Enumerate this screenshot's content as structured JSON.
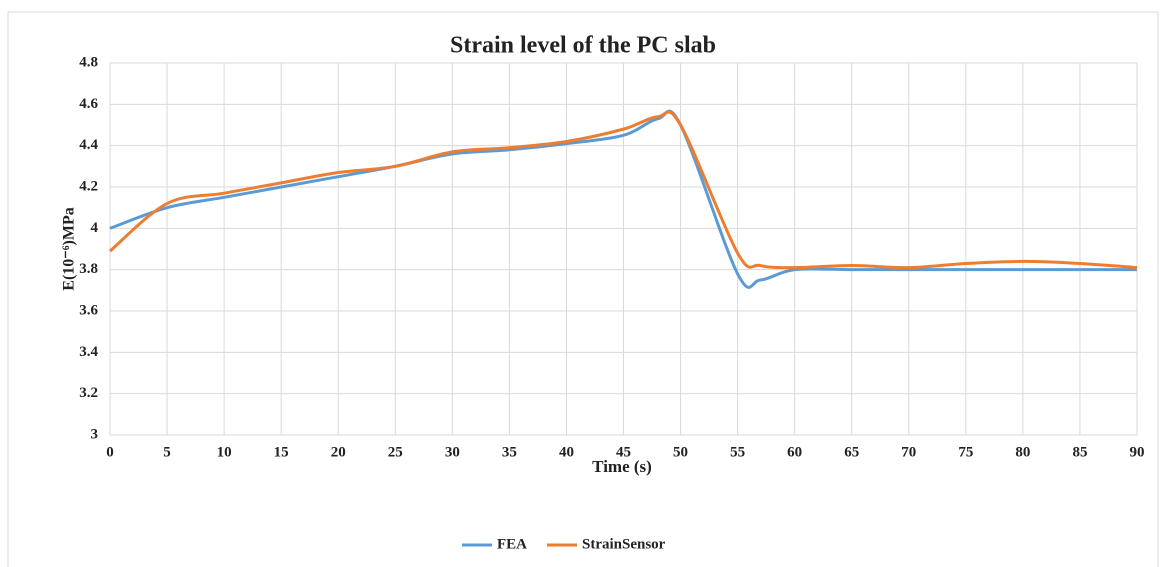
{
  "chart_data": {
    "type": "line",
    "title": "Strain level of the PC slab",
    "xlabel": "Time (s)",
    "ylabel": "E(10⁻⁶)MPa",
    "x": [
      0,
      5,
      10,
      15,
      20,
      25,
      30,
      35,
      40,
      45,
      48,
      50,
      55,
      57,
      60,
      65,
      70,
      75,
      80,
      85,
      90
    ],
    "series": [
      {
        "name": "FEA",
        "color": "#5b9bd5",
        "values": [
          4.0,
          4.1,
          4.15,
          4.2,
          4.25,
          4.3,
          4.36,
          4.38,
          4.41,
          4.45,
          4.53,
          4.5,
          3.78,
          3.75,
          3.8,
          3.8,
          3.8,
          3.8,
          3.8,
          3.8,
          3.8
        ]
      },
      {
        "name": "StrainSensor",
        "color": "#ed7d31",
        "values": [
          3.89,
          4.12,
          4.17,
          4.22,
          4.27,
          4.3,
          4.37,
          4.39,
          4.42,
          4.48,
          4.54,
          4.5,
          3.88,
          3.82,
          3.81,
          3.82,
          3.81,
          3.83,
          3.84,
          3.83,
          3.81
        ]
      }
    ],
    "xlim": [
      0,
      90
    ],
    "xticks": [
      0,
      5,
      10,
      15,
      20,
      25,
      30,
      35,
      40,
      45,
      50,
      55,
      60,
      65,
      70,
      75,
      80,
      85,
      90
    ],
    "ylim": [
      3,
      4.8
    ],
    "yticks": [
      3,
      3.2,
      3.4,
      3.6,
      3.8,
      4,
      4.2,
      4.4,
      4.6,
      4.8
    ],
    "grid": true,
    "legend": "bottom"
  }
}
